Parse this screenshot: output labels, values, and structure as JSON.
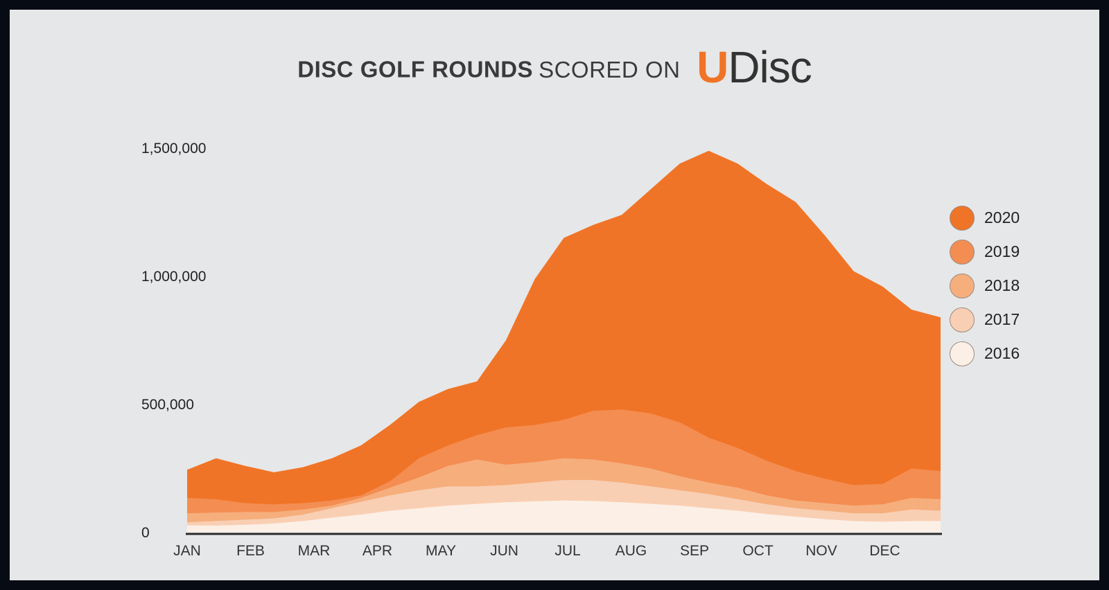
{
  "title": {
    "bold": "DISC GOLF ROUNDS",
    "light": "SCORED ON",
    "logo_u": "U",
    "logo_rest": "Disc"
  },
  "colors": {
    "panel_bg": "#e6e7e8",
    "frame": "#070b13",
    "accent": "#f07427",
    "axis": "#2b2b2b"
  },
  "chart_data": {
    "type": "area",
    "stacked": false,
    "title": "DISC GOLF ROUNDS SCORED ON UDisc",
    "xlabel": "",
    "ylabel": "",
    "x_ticks": [
      "JAN",
      "FEB",
      "MAR",
      "APR",
      "MAY",
      "JUN",
      "JUL",
      "AUG",
      "SEP",
      "OCT",
      "NOV",
      "DEC"
    ],
    "y_ticks": [
      {
        "value": 0,
        "label": "0"
      },
      {
        "value": 500000,
        "label": "500,000"
      },
      {
        "value": 1000000,
        "label": "1,000,000"
      },
      {
        "value": 1500000,
        "label": "1,500,000"
      }
    ],
    "ylim": [
      0,
      1500000
    ],
    "grid": false,
    "legend_position": "right",
    "x_weeks": [
      0,
      2,
      4,
      6,
      8,
      10,
      12,
      14,
      16,
      18,
      20,
      22,
      24,
      26,
      28,
      30,
      32,
      34,
      36,
      38,
      40,
      42,
      44,
      46,
      48,
      50,
      52
    ],
    "series": [
      {
        "name": "2020",
        "color": "#f07427",
        "values": [
          245000,
          290000,
          260000,
          235000,
          255000,
          290000,
          340000,
          420000,
          510000,
          560000,
          590000,
          750000,
          990000,
          1150000,
          1200000,
          1240000,
          1340000,
          1440000,
          1490000,
          1440000,
          1360000,
          1290000,
          1160000,
          1020000,
          960000,
          870000,
          840000
        ]
      },
      {
        "name": "2019",
        "color": "#f48d51",
        "values": [
          135000,
          130000,
          115000,
          110000,
          115000,
          125000,
          145000,
          200000,
          290000,
          340000,
          380000,
          410000,
          420000,
          440000,
          475000,
          480000,
          465000,
          430000,
          370000,
          330000,
          280000,
          240000,
          210000,
          185000,
          190000,
          250000,
          240000
        ]
      },
      {
        "name": "2018",
        "color": "#f6ae7d",
        "values": [
          75000,
          78000,
          80000,
          80000,
          90000,
          105000,
          135000,
          175000,
          215000,
          260000,
          285000,
          265000,
          275000,
          290000,
          285000,
          270000,
          250000,
          220000,
          195000,
          175000,
          145000,
          125000,
          115000,
          105000,
          110000,
          135000,
          130000
        ]
      },
      {
        "name": "2017",
        "color": "#f9cfb3",
        "values": [
          40000,
          45000,
          50000,
          55000,
          70000,
          95000,
          120000,
          145000,
          165000,
          180000,
          180000,
          185000,
          195000,
          205000,
          205000,
          195000,
          180000,
          165000,
          150000,
          130000,
          110000,
          95000,
          85000,
          75000,
          75000,
          90000,
          85000
        ]
      },
      {
        "name": "2016",
        "color": "#fcefe6",
        "values": [
          28000,
          27000,
          30000,
          35000,
          45000,
          58000,
          70000,
          85000,
          95000,
          105000,
          112000,
          118000,
          122000,
          125000,
          123000,
          118000,
          112000,
          105000,
          95000,
          85000,
          72000,
          62000,
          52000,
          45000,
          42000,
          45000,
          45000
        ]
      }
    ]
  }
}
